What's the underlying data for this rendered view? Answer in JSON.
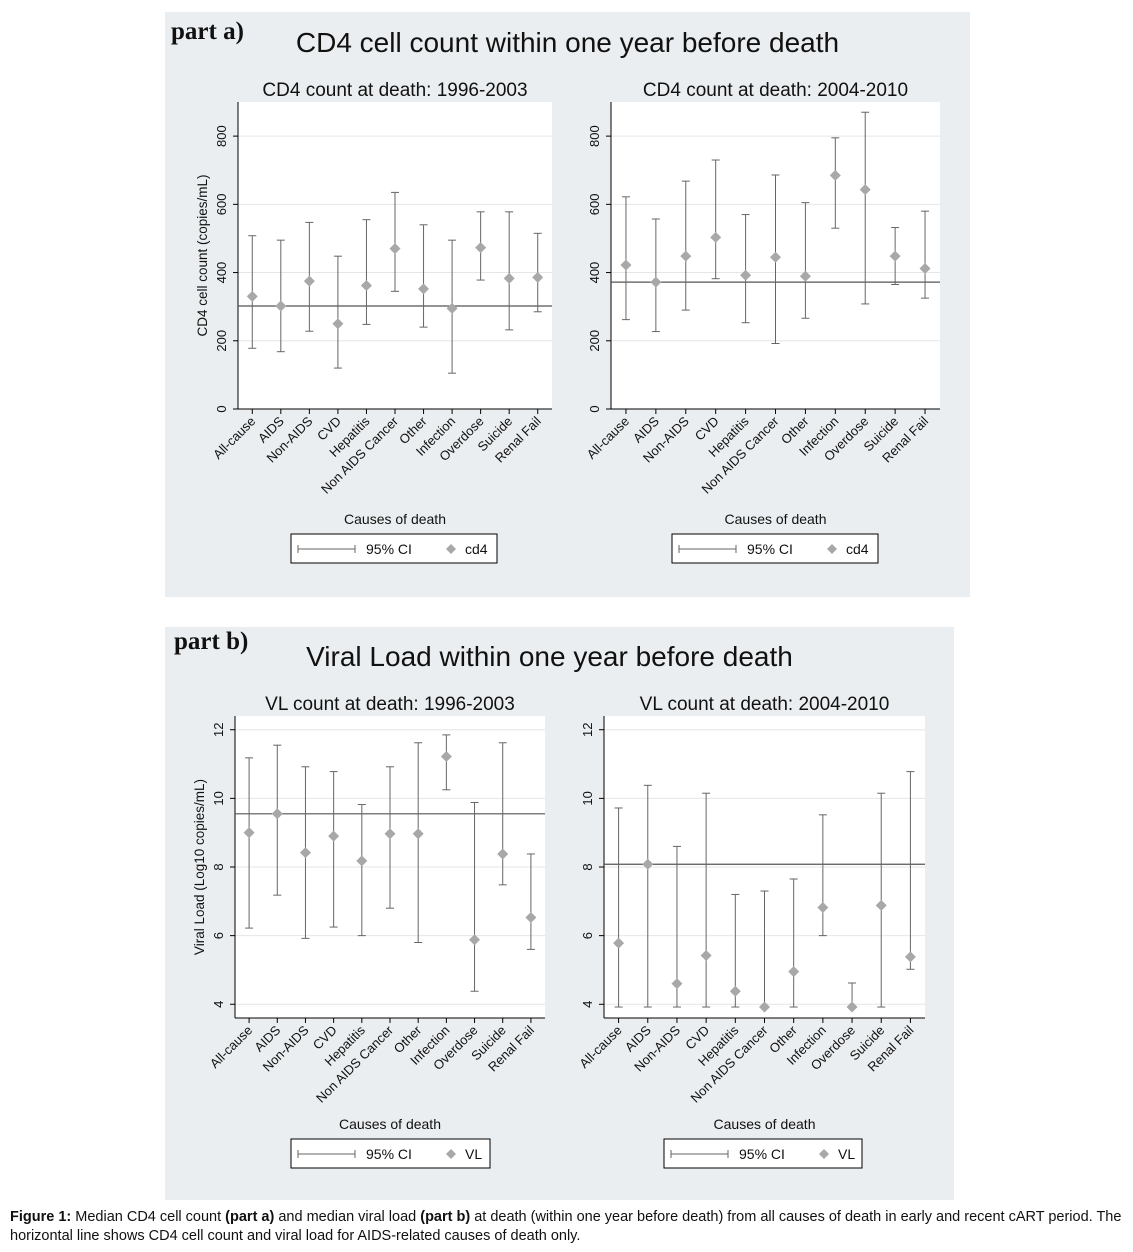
{
  "part_a": {
    "label": "part a)",
    "title": "CD4 cell count within one year before death"
  },
  "part_b": {
    "label": "part b)",
    "title": "Viral Load within one year before death"
  },
  "caption": {
    "fig_label": "Figure 1:",
    "t1": " Median CD4 cell count ",
    "b1": "(part a)",
    "t2": " and median viral load ",
    "b2": "(part b)",
    "t3": " at death (within one year before death) from all causes of death in early and recent cART period. The horizontal line shows CD4 cell count and viral load for AIDS-related causes of death only."
  },
  "colors": {
    "marker": "#a8a8a8",
    "whisker": "#666666",
    "refline": "#555555",
    "grid": "#e6e6e6",
    "panel": "#ebeef0"
  },
  "chart_data": [
    {
      "type": "scatter",
      "title": "CD4 count at death: 1996-2003",
      "xlabel": "Causes of death",
      "ylabel": "CD4 cell count (copies/mL)",
      "ylim": [
        0,
        900
      ],
      "yticks": [
        0,
        200,
        400,
        600,
        800
      ],
      "categories": [
        "All-cause",
        "AIDS",
        "Non-AIDS",
        "CVD",
        "Hepatitis",
        "Non AIDS Cancer",
        "Other",
        "Infection",
        "Overdose",
        "Suicide",
        "Renal Fail"
      ],
      "values": [
        330,
        302,
        375,
        250,
        362,
        470,
        352,
        295,
        473,
        383,
        386
      ],
      "ci_low": [
        178,
        168,
        228,
        120,
        248,
        345,
        240,
        105,
        378,
        232,
        285
      ],
      "ci_high": [
        508,
        495,
        547,
        448,
        555,
        635,
        540,
        495,
        578,
        578,
        515
      ],
      "reference_line": 302,
      "legend": [
        "95% CI",
        "cd4"
      ]
    },
    {
      "type": "scatter",
      "title": "CD4 count at death: 2004-2010",
      "xlabel": "Causes of death",
      "ylabel": "",
      "ylim": [
        0,
        900
      ],
      "yticks": [
        0,
        200,
        400,
        600,
        800
      ],
      "categories": [
        "All-cause",
        "AIDS",
        "Non-AIDS",
        "CVD",
        "Hepatitis",
        "Non AIDS Cancer",
        "Other",
        "Infection",
        "Overdose",
        "Suicide",
        "Renal Fail"
      ],
      "values": [
        422,
        372,
        448,
        503,
        392,
        445,
        389,
        685,
        643,
        448,
        412
      ],
      "ci_low": [
        262,
        227,
        290,
        382,
        253,
        192,
        266,
        530,
        308,
        365,
        325
      ],
      "ci_high": [
        622,
        557,
        668,
        730,
        570,
        686,
        605,
        795,
        870,
        532,
        580
      ],
      "reference_line": 372,
      "legend": [
        "95% CI",
        "cd4"
      ]
    },
    {
      "type": "scatter",
      "title": "VL count at death: 1996-2003",
      "xlabel": "Causes of death",
      "ylabel": "Viral Load (Log10 copies/mL)",
      "ylim": [
        3.6,
        12.4
      ],
      "yticks": [
        4,
        6,
        8,
        10,
        12
      ],
      "categories": [
        "All-cause",
        "AIDS",
        "Non-AIDS",
        "CVD",
        "Hepatitis",
        "Non AIDS Cancer",
        "Other",
        "Infection",
        "Overdose",
        "Suicide",
        "Renal Fail"
      ],
      "values": [
        9.0,
        9.55,
        8.42,
        8.9,
        8.18,
        8.97,
        8.97,
        11.22,
        5.88,
        8.38,
        6.53
      ],
      "ci_low": [
        6.22,
        7.18,
        5.92,
        6.25,
        6.0,
        6.8,
        5.8,
        10.25,
        4.38,
        7.48,
        5.6
      ],
      "ci_high": [
        11.18,
        11.55,
        10.92,
        10.78,
        9.82,
        10.92,
        11.62,
        11.85,
        9.88,
        11.62,
        8.38
      ],
      "reference_line": 9.55,
      "legend": [
        "95% CI",
        "VL"
      ]
    },
    {
      "type": "scatter",
      "title": "VL count at death: 2004-2010",
      "xlabel": "Causes of death",
      "ylabel": "",
      "ylim": [
        3.6,
        12.4
      ],
      "yticks": [
        4,
        6,
        8,
        10,
        12
      ],
      "categories": [
        "All-cause",
        "AIDS",
        "Non-AIDS",
        "CVD",
        "Hepatitis",
        "Non AIDS Cancer",
        "Other",
        "Infection",
        "Overdose",
        "Suicide",
        "Renal Fail"
      ],
      "values": [
        5.78,
        8.08,
        4.6,
        5.42,
        4.38,
        3.92,
        4.95,
        6.82,
        3.92,
        6.88,
        5.38
      ],
      "ci_low": [
        3.92,
        3.92,
        3.92,
        3.92,
        3.92,
        3.92,
        3.92,
        6.0,
        3.92,
        3.92,
        5.02
      ],
      "ci_high": [
        9.72,
        10.38,
        8.6,
        10.15,
        7.2,
        7.3,
        7.65,
        9.52,
        4.62,
        10.15,
        10.78
      ],
      "reference_line": 8.08,
      "legend": [
        "95% CI",
        "VL"
      ]
    }
  ]
}
